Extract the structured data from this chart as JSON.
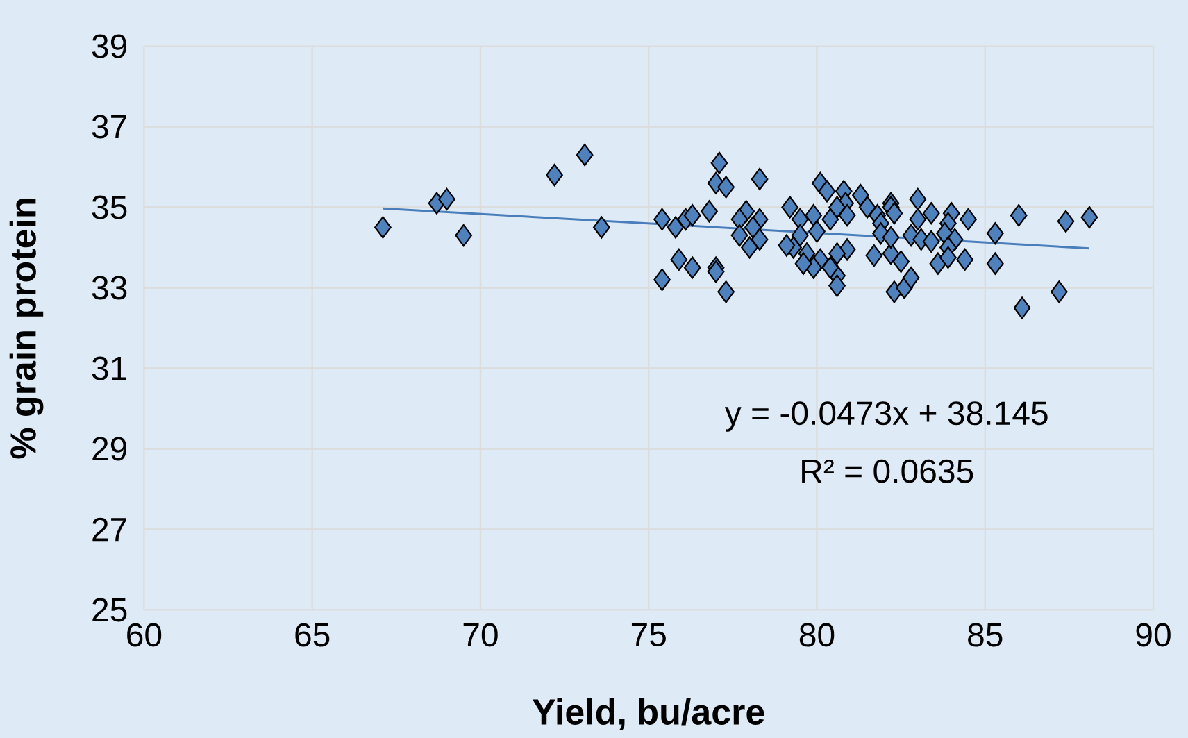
{
  "chart_data": {
    "type": "scatter",
    "xlabel": "Yield, bu/acre",
    "ylabel": "% grain protein",
    "annotations": [
      "y = -0.0473x + 38.145",
      "R² = 0.0635"
    ],
    "xlim": [
      60,
      90
    ],
    "xticks": [
      60,
      65,
      70,
      75,
      80,
      85,
      90
    ],
    "ylim": [
      25,
      39
    ],
    "yticks": [
      25,
      27,
      29,
      31,
      33,
      35,
      37,
      39
    ],
    "grid": true,
    "series": [
      {
        "color": "#4f81bd",
        "marker": "diamond",
        "x": [
          67.1,
          68.7,
          69.0,
          69.5,
          72.2,
          73.1,
          73.6,
          75.4,
          75.4,
          75.8,
          75.9,
          76.1,
          76.3,
          76.8,
          76.3,
          77.0,
          77.0,
          77.3,
          77.1,
          77.0,
          77.3,
          78.3,
          77.9,
          77.7,
          78.3,
          78.1,
          77.7,
          78.3,
          78.0,
          79.2,
          79.5,
          79.9,
          80.4,
          80.1,
          80.3,
          80.8,
          81.3,
          81.5,
          80.85,
          80.6,
          80.9,
          81.8,
          81.9,
          82.2,
          82.2,
          82.3,
          83.0,
          83.4,
          83.0,
          84.0,
          83.9,
          84.5,
          86.0,
          87.4,
          88.1,
          85.3,
          85.3,
          87.2,
          86.1,
          82.3,
          82.6,
          82.8,
          82.5,
          82.2,
          81.7,
          81.9,
          82.2,
          82.8,
          83.1,
          83.4,
          83.8,
          84.1,
          83.9,
          83.6,
          83.9,
          84.4,
          80.9,
          80.6,
          80.6,
          80.6,
          80.4,
          80.1,
          79.9,
          79.7,
          79.5,
          80.0,
          79.3,
          79.1,
          79.6
        ],
        "values": [
          34.5,
          35.1,
          35.2,
          34.3,
          35.8,
          36.3,
          34.5,
          33.2,
          34.7,
          34.5,
          33.7,
          34.7,
          34.8,
          34.9,
          33.5,
          33.5,
          33.4,
          32.9,
          36.1,
          35.6,
          35.5,
          35.7,
          34.9,
          34.7,
          34.7,
          34.5,
          34.3,
          34.2,
          34.0,
          35.0,
          34.7,
          34.8,
          34.7,
          35.6,
          35.4,
          35.4,
          35.3,
          35.0,
          35.1,
          35.0,
          34.8,
          34.8,
          34.6,
          35.1,
          35.0,
          34.85,
          35.2,
          34.85,
          34.7,
          34.85,
          34.6,
          34.7,
          34.8,
          34.65,
          34.75,
          34.35,
          33.6,
          32.9,
          32.5,
          32.9,
          33.0,
          33.25,
          33.65,
          33.85,
          33.8,
          34.35,
          34.25,
          34.3,
          34.2,
          34.15,
          34.35,
          34.2,
          34.0,
          33.6,
          33.75,
          33.7,
          33.95,
          33.85,
          33.3,
          33.05,
          33.5,
          33.7,
          33.5,
          33.85,
          34.3,
          34.4,
          34.0,
          34.05,
          33.6
        ]
      },
      {
        "type": "line",
        "marker": "none",
        "color": "#4a7ebb",
        "x": [
          67.1,
          88.1
        ],
        "values": [
          34.97,
          33.98
        ]
      }
    ]
  }
}
